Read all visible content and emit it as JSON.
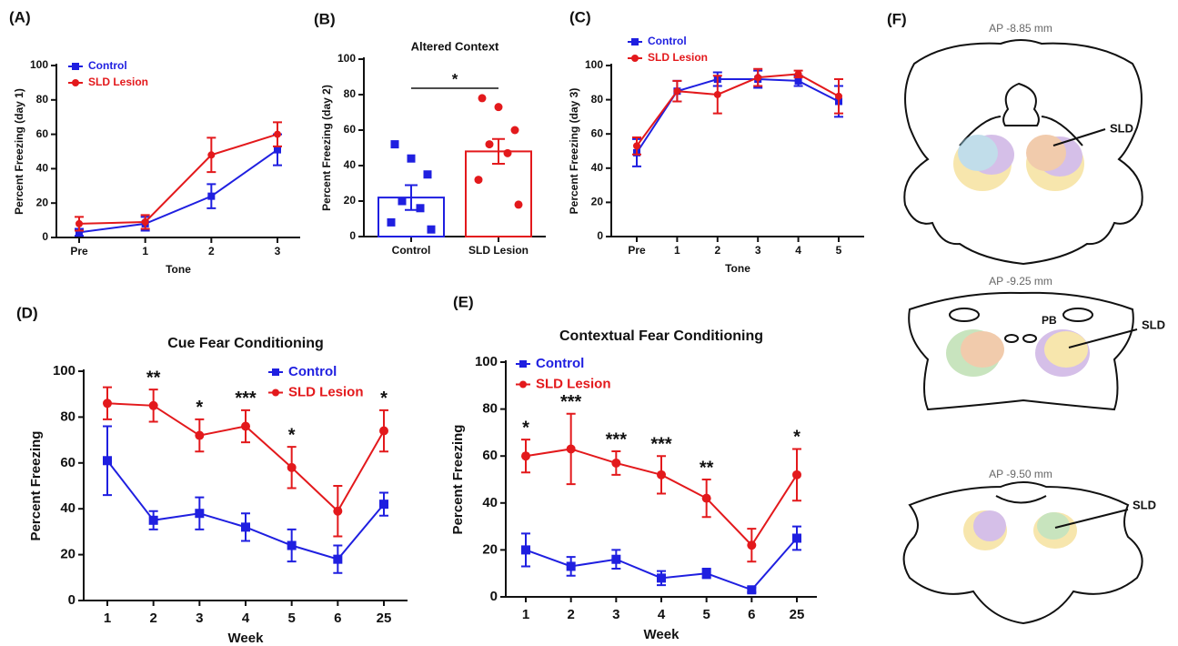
{
  "chart_data": [
    {
      "type": "line",
      "panel_label": "(A)",
      "ylabel": "Percent Freezing (day 1)",
      "xlabel": "Tone",
      "categories": [
        "Pre",
        "1",
        "2",
        "3"
      ],
      "ylim": [
        0,
        100
      ],
      "yticks": [
        0,
        20,
        40,
        60,
        80,
        100
      ],
      "series": [
        {
          "name": "Control",
          "color": "#1f1fe0",
          "marker": "square",
          "values": [
            3,
            8,
            24,
            51
          ],
          "errors": [
            2,
            4,
            7,
            9
          ]
        },
        {
          "name": "SLD Lesion",
          "color": "#e3191c",
          "marker": "circle",
          "values": [
            8,
            9,
            48,
            60
          ],
          "errors": [
            4,
            4,
            10,
            7
          ]
        }
      ]
    },
    {
      "type": "bar",
      "panel_label": "(B)",
      "title": "Altered Context",
      "ylabel": "Percent Freezing (day 2)",
      "categories": [
        "Control",
        "SLD Lesion"
      ],
      "values": [
        22,
        48
      ],
      "errors": [
        7,
        7
      ],
      "colors": [
        "#1f1fe0",
        "#e3191c"
      ],
      "markers": [
        "square",
        "circle"
      ],
      "points": [
        [
          52,
          44,
          35,
          20,
          16,
          8,
          4
        ],
        [
          78,
          73,
          60,
          52,
          47,
          32,
          18
        ]
      ],
      "annotation": "*",
      "ylim": [
        0,
        100
      ],
      "yticks": [
        0,
        20,
        40,
        60,
        80,
        100
      ]
    },
    {
      "type": "line",
      "panel_label": "(C)",
      "ylabel": "Percent Freezing (day 3)",
      "xlabel": "Tone",
      "categories": [
        "Pre",
        "1",
        "2",
        "3",
        "4",
        "5"
      ],
      "ylim": [
        0,
        100
      ],
      "yticks": [
        0,
        20,
        40,
        60,
        80,
        100
      ],
      "series": [
        {
          "name": "Control",
          "color": "#1f1fe0",
          "marker": "square",
          "values": [
            49,
            85,
            92,
            92,
            91,
            79
          ],
          "errors": [
            8,
            6,
            4,
            5,
            3,
            9
          ]
        },
        {
          "name": "SLD Lesion",
          "color": "#e3191c",
          "marker": "circle",
          "values": [
            53,
            85,
            83,
            93,
            95,
            82
          ],
          "errors": [
            5,
            6,
            11,
            5,
            2,
            10
          ]
        }
      ]
    },
    {
      "type": "line",
      "panel_label": "(D)",
      "title": "Cue Fear Conditioning",
      "ylabel": "Percent Freezing",
      "xlabel": "Week",
      "categories": [
        "1",
        "2",
        "3",
        "4",
        "5",
        "6",
        "25"
      ],
      "ylim": [
        0,
        100
      ],
      "yticks": [
        0,
        20,
        40,
        60,
        80,
        100
      ],
      "significance": [
        null,
        "**",
        "*",
        "***",
        "*",
        null,
        "*"
      ],
      "series": [
        {
          "name": "Control",
          "color": "#1f1fe0",
          "marker": "square",
          "values": [
            61,
            35,
            38,
            32,
            24,
            18,
            42
          ],
          "errors": [
            15,
            4,
            7,
            6,
            7,
            6,
            5
          ]
        },
        {
          "name": "SLD Lesion",
          "color": "#e3191c",
          "marker": "circle",
          "values": [
            86,
            85,
            72,
            76,
            58,
            39,
            74
          ],
          "errors": [
            7,
            7,
            7,
            7,
            9,
            11,
            9
          ]
        }
      ]
    },
    {
      "type": "line",
      "panel_label": "(E)",
      "title": "Contextual Fear Conditioning",
      "ylabel": "Percent Freezing",
      "xlabel": "Week",
      "categories": [
        "1",
        "2",
        "3",
        "4",
        "5",
        "6",
        "25"
      ],
      "ylim": [
        0,
        100
      ],
      "yticks": [
        0,
        20,
        40,
        60,
        80,
        100
      ],
      "significance": [
        "*",
        "***",
        "***",
        "***",
        "**",
        null,
        "*"
      ],
      "series": [
        {
          "name": "Control",
          "color": "#1f1fe0",
          "marker": "square",
          "values": [
            20,
            13,
            16,
            8,
            10,
            3,
            25
          ],
          "errors": [
            7,
            4,
            4,
            3,
            2,
            1,
            5
          ]
        },
        {
          "name": "SLD Lesion",
          "color": "#e3191c",
          "marker": "circle",
          "values": [
            60,
            63,
            57,
            52,
            42,
            22,
            52
          ],
          "errors": [
            7,
            15,
            5,
            8,
            8,
            7,
            11
          ]
        }
      ]
    }
  ],
  "panel_f": {
    "panel_label": "(F)",
    "sections": [
      {
        "label": "AP -8.85 mm",
        "structures": [
          "SLD"
        ]
      },
      {
        "label": "AP -9.25 mm",
        "structures": [
          "PB",
          "SLD"
        ]
      },
      {
        "label": "AP -9.50 mm",
        "structures": [
          "SLD"
        ]
      }
    ]
  }
}
